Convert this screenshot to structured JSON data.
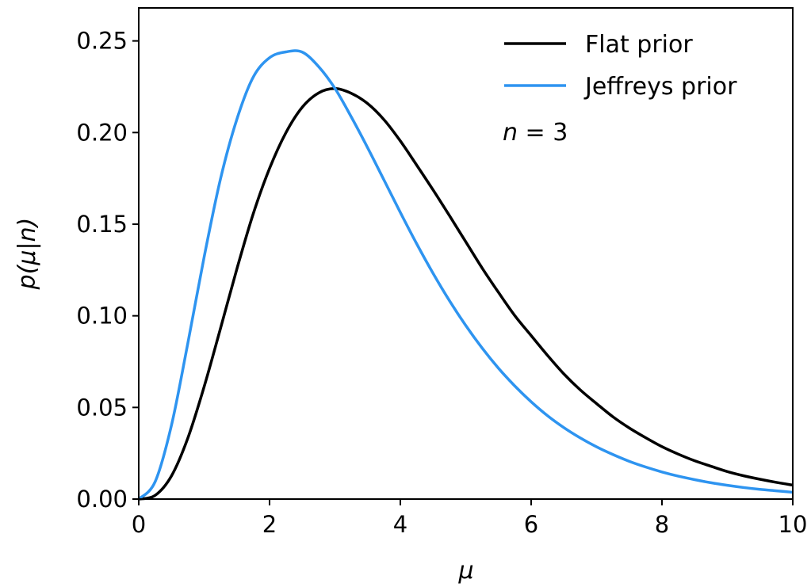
{
  "chart_data": {
    "type": "line",
    "xlabel": "μ",
    "ylabel": "p(μ|n)",
    "xlim": [
      0,
      10
    ],
    "ylim": [
      0,
      0.268
    ],
    "xticks": [
      0,
      2,
      4,
      6,
      8,
      10
    ],
    "xtick_labels": [
      "0",
      "2",
      "4",
      "6",
      "8",
      "10"
    ],
    "yticks": [
      0,
      0.05,
      0.1,
      0.15,
      0.2,
      0.25
    ],
    "ytick_labels": [
      "0.00",
      "0.05",
      "0.10",
      "0.15",
      "0.20",
      "0.25"
    ],
    "grid": false,
    "legend_position": "top-right",
    "annotation": {
      "var": "n",
      "rel": " = ",
      "value": "3"
    },
    "series": [
      {
        "name": "Flat prior",
        "color": "#000000",
        "x": [
          0,
          0.25,
          0.5,
          0.75,
          1,
          1.25,
          1.5,
          1.75,
          2,
          2.25,
          2.5,
          2.75,
          3,
          3.25,
          3.5,
          3.75,
          4,
          4.25,
          4.5,
          4.75,
          5,
          5.25,
          5.5,
          5.75,
          6,
          6.25,
          6.5,
          6.75,
          7,
          7.25,
          7.5,
          7.75,
          8,
          8.25,
          8.5,
          8.75,
          9,
          9.25,
          9.5,
          9.75,
          10
        ],
        "y": [
          0,
          0.002,
          0.0126,
          0.0332,
          0.0613,
          0.0931,
          0.1255,
          0.1556,
          0.1804,
          0.1999,
          0.2138,
          0.2216,
          0.224,
          0.2214,
          0.2158,
          0.207,
          0.1954,
          0.1822,
          0.1687,
          0.1547,
          0.1404,
          0.1261,
          0.1128,
          0.1001,
          0.0892,
          0.0784,
          0.0683,
          0.0596,
          0.0521,
          0.0449,
          0.0388,
          0.0335,
          0.0286,
          0.0245,
          0.0209,
          0.0179,
          0.015,
          0.0127,
          0.0108,
          0.0091,
          0.0076
        ]
      },
      {
        "name": "Jeffreys prior",
        "color": "#2e94f0",
        "x": [
          0,
          0.25,
          0.5,
          0.75,
          1,
          1.25,
          1.5,
          1.75,
          2,
          2.25,
          2.5,
          2.75,
          3,
          3.25,
          3.5,
          3.75,
          4,
          4.25,
          4.5,
          4.75,
          5,
          5.25,
          5.5,
          5.75,
          6,
          6.25,
          6.5,
          6.75,
          7,
          7.25,
          7.5,
          7.75,
          8,
          8.25,
          8.5,
          8.75,
          9,
          9.25,
          9.5,
          9.75,
          10
        ],
        "y": [
          0,
          0.0094,
          0.0402,
          0.0849,
          0.1321,
          0.1747,
          0.2072,
          0.2302,
          0.2408,
          0.244,
          0.2439,
          0.236,
          0.2241,
          0.2085,
          0.1917,
          0.1741,
          0.1564,
          0.1393,
          0.1232,
          0.1083,
          0.0947,
          0.0824,
          0.0714,
          0.0617,
          0.0531,
          0.0455,
          0.039,
          0.0334,
          0.0285,
          0.0243,
          0.0206,
          0.0175,
          0.0148,
          0.0125,
          0.0106,
          0.0089,
          0.0075,
          0.0063,
          0.0053,
          0.0045,
          0.0037
        ]
      }
    ]
  }
}
